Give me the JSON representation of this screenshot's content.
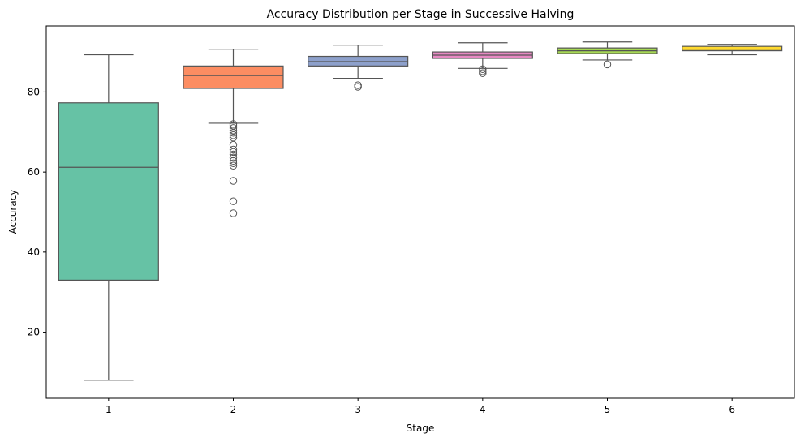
{
  "chart_data": {
    "type": "box",
    "title": "Accuracy Distribution per Stage in Successive Halving",
    "xlabel": "Stage",
    "ylabel": "Accuracy",
    "ylim": [
      3.5,
      96.5
    ],
    "yticks": [
      20,
      40,
      60,
      80
    ],
    "grid": false,
    "legend": "none",
    "categories": [
      "1",
      "2",
      "3",
      "4",
      "5",
      "6"
    ],
    "boxes": [
      {
        "stage": "1",
        "color": "#66c2a5",
        "whisker_low": 8.0,
        "q1": 33.0,
        "median": 61.2,
        "q3": 77.3,
        "whisker_high": 89.3,
        "outliers": []
      },
      {
        "stage": "2",
        "color": "#fc8d62",
        "whisker_low": 72.2,
        "q1": 80.9,
        "median": 84.1,
        "q3": 86.5,
        "whisker_high": 90.7,
        "outliers": [
          49.7,
          52.7,
          57.8,
          61.6,
          62.2,
          62.8,
          63.6,
          64.4,
          65.0,
          65.6,
          66.8,
          68.6,
          69.2,
          69.8,
          70.4,
          71.0,
          71.6,
          72.0
        ]
      },
      {
        "stage": "3",
        "color": "#8da0cb",
        "whisker_low": 83.4,
        "q1": 86.5,
        "median": 87.6,
        "q3": 88.9,
        "whisker_high": 91.7,
        "outliers": [
          81.3,
          81.7
        ]
      },
      {
        "stage": "4",
        "color": "#e78ac3",
        "whisker_low": 85.9,
        "q1": 88.4,
        "median": 89.2,
        "q3": 90.0,
        "whisker_high": 92.3,
        "outliers": [
          84.7,
          85.2,
          85.7
        ]
      },
      {
        "stage": "5",
        "color": "#a6d854",
        "whisker_low": 88.0,
        "q1": 89.6,
        "median": 90.3,
        "q3": 91.0,
        "whisker_high": 92.5,
        "outliers": [
          86.9
        ]
      },
      {
        "stage": "6",
        "color": "#ffd92f",
        "whisker_low": 89.3,
        "q1": 90.3,
        "median": 90.7,
        "q3": 91.4,
        "whisker_high": 91.9,
        "outliers": []
      }
    ]
  }
}
